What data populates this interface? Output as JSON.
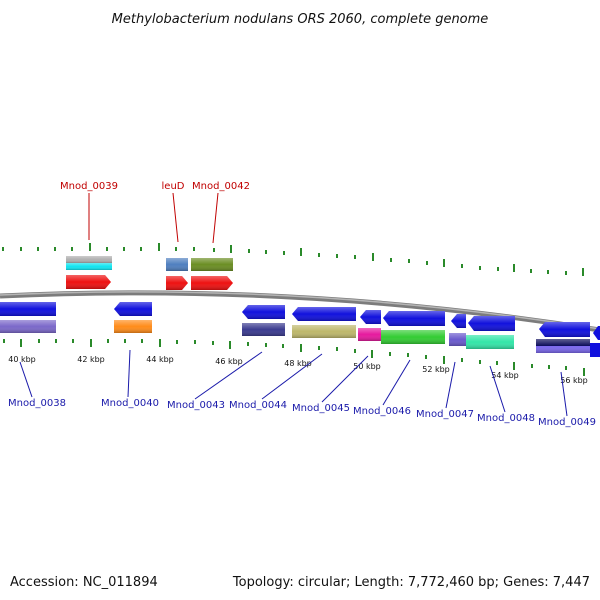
{
  "title": "Methylobacterium nodulans ORS 2060, complete genome",
  "footer": {
    "accession": "Accession: NC_011894",
    "summary": "Topology: circular; Length: 7,772,460 bp; Genes: 7,447"
  },
  "scale_labels": [
    "40 kbp",
    "42 kbp",
    "44 kbp",
    "46 kbp",
    "48 kbp",
    "50 kbp",
    "52 kbp",
    "54 kbp",
    "56 kbp"
  ],
  "top_gene_labels": [
    "Mnod_0039",
    "leuD",
    "Mnod_0042"
  ],
  "bottom_gene_labels": [
    "Mnod_0038",
    "Mnod_0040",
    "Mnod_0043",
    "Mnod_0044",
    "Mnod_0045",
    "Mnod_0046",
    "Mnod_0047",
    "Mnod_0048",
    "Mnod_0049"
  ],
  "colors": {
    "forward_cds": "#ee1111",
    "reverse_cds": "#1111dd",
    "backbone": "#8a8a8a",
    "tick": "#2a8a2a",
    "label_forward": "#c00000",
    "label_reverse": "#1a1aaa"
  }
}
